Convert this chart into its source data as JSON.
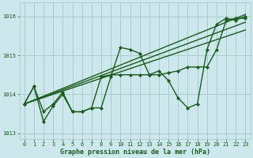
{
  "bg_color": "#cce8ec",
  "grid_color": "#aacccc",
  "line_color": "#1a5c1a",
  "marker_color": "#1a5c1a",
  "title": "Graphe pression niveau de la mer (hPa)",
  "xlim": [
    -0.5,
    23.5
  ],
  "ylim": [
    1012.85,
    1016.35
  ],
  "yticks": [
    1013,
    1014,
    1015,
    1016
  ],
  "xticks": [
    0,
    1,
    2,
    3,
    4,
    5,
    6,
    7,
    8,
    9,
    10,
    11,
    12,
    13,
    14,
    15,
    16,
    17,
    18,
    19,
    20,
    21,
    22,
    23
  ],
  "series": [
    {
      "x": [
        0,
        1,
        2,
        3,
        4,
        5,
        6,
        7,
        8,
        9,
        10,
        11,
        12,
        13,
        14,
        15,
        16,
        17,
        18,
        19,
        20,
        21,
        22,
        23
      ],
      "y": [
        1013.75,
        1014.2,
        1013.55,
        1013.75,
        1014.05,
        1013.55,
        1013.55,
        1013.65,
        1013.65,
        1014.45,
        1015.2,
        1015.15,
        1015.05,
        1014.5,
        1014.6,
        1014.35,
        1013.9,
        1013.65,
        1013.75,
        1015.15,
        1015.8,
        1015.95,
        1015.9,
        1016.0
      ],
      "marker": true,
      "lw": 1.0
    },
    {
      "x": [
        0,
        1,
        2,
        3,
        4,
        5,
        6,
        7,
        8,
        9,
        10,
        11,
        12,
        13,
        14,
        15,
        16,
        17,
        18,
        19,
        20,
        21,
        22,
        23
      ],
      "y": [
        1013.75,
        1014.2,
        1013.3,
        1013.7,
        1014.0,
        1013.55,
        1013.55,
        1013.65,
        1014.45,
        1014.5,
        1014.5,
        1014.5,
        1014.5,
        1014.5,
        1014.5,
        1014.55,
        1014.6,
        1014.7,
        1014.7,
        1014.7,
        1015.15,
        1015.9,
        1015.95,
        1015.95
      ],
      "marker": true,
      "lw": 1.0
    },
    {
      "x": [
        0,
        23
      ],
      "y": [
        1013.75,
        1016.05
      ],
      "marker": false,
      "lw": 1.0
    },
    {
      "x": [
        0,
        23
      ],
      "y": [
        1013.75,
        1015.85
      ],
      "marker": false,
      "lw": 1.0
    },
    {
      "x": [
        0,
        23
      ],
      "y": [
        1013.75,
        1015.65
      ],
      "marker": false,
      "lw": 1.0
    }
  ]
}
